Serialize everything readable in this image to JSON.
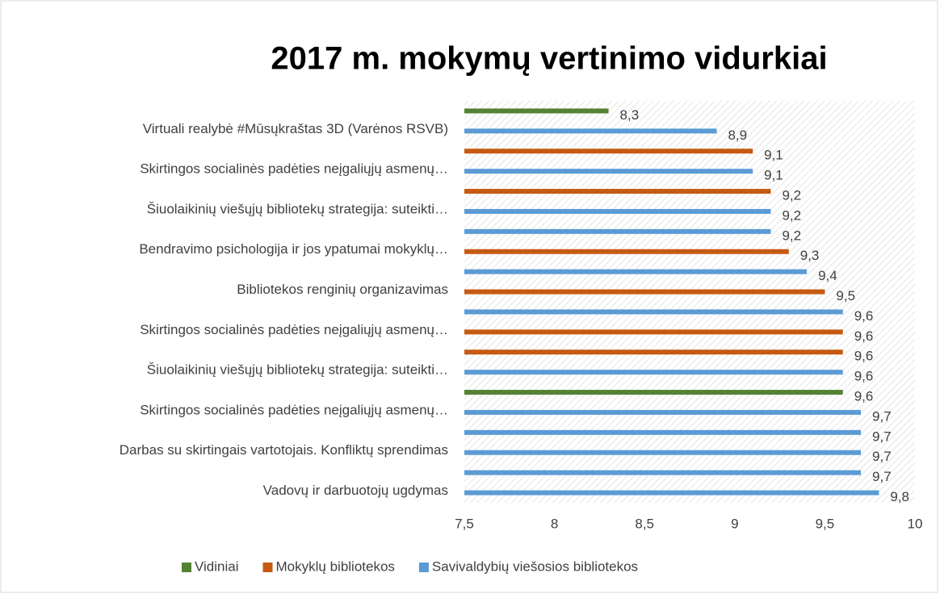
{
  "chart_data": {
    "type": "bar",
    "orientation": "horizontal",
    "title": "2017 m. mokymų vertinimo vidurkiai",
    "categories": [
      null,
      "Virtuali realybė #Mūsųkraštas 3D (Varėnos RSVB)",
      null,
      "Skirtingos socialinės padėties neįgaliųjų asmenų…",
      null,
      "Šiuolaikinių viešųjų bibliotekų strategija: suteikti…",
      null,
      "Bendravimo psichologija ir jos ypatumai mokyklų…",
      null,
      "Bibliotekos renginių organizavimas",
      null,
      "Skirtingos socialinės padėties neįgaliųjų asmenų…",
      null,
      "Šiuolaikinių viešųjų bibliotekų strategija: suteikti…",
      null,
      "Skirtingos socialinės padėties neįgaliųjų asmenų…",
      null,
      "Darbas su skirtingais vartotojais. Konfliktų sprendimas",
      null,
      "Vadovų ir darbuotojų ugdymas"
    ],
    "series": [
      {
        "name": "Vidiniai",
        "color": "#548235",
        "values": [
          8.3,
          null,
          null,
          null,
          null,
          null,
          null,
          null,
          null,
          null,
          null,
          null,
          null,
          null,
          9.6,
          null,
          null,
          null,
          null,
          null
        ],
        "value_labels": [
          "8,3",
          null,
          null,
          null,
          null,
          null,
          null,
          null,
          null,
          null,
          null,
          null,
          null,
          null,
          "9,6",
          null,
          null,
          null,
          null,
          null
        ]
      },
      {
        "name": "Mokyklų bibliotekos",
        "color": "#c55a11",
        "values": [
          null,
          null,
          9.1,
          null,
          9.2,
          null,
          null,
          9.3,
          null,
          9.5,
          null,
          9.6,
          9.6,
          null,
          null,
          null,
          null,
          null,
          null,
          null
        ],
        "value_labels": [
          null,
          null,
          "9,1",
          null,
          "9,2",
          null,
          null,
          "9,3",
          null,
          "9,5",
          null,
          "9,6",
          "9,6",
          null,
          null,
          null,
          null,
          null,
          null,
          null
        ]
      },
      {
        "name": "Savivaldybių viešosios bibliotekos",
        "color": "#5b9bd5",
        "values": [
          null,
          8.9,
          null,
          9.1,
          null,
          9.2,
          9.2,
          null,
          9.4,
          null,
          9.6,
          null,
          null,
          9.6,
          null,
          9.7,
          9.7,
          9.7,
          9.7,
          9.8
        ],
        "value_labels": [
          null,
          "8,9",
          null,
          "9,1",
          null,
          "9,2",
          "9,2",
          null,
          "9,4",
          null,
          "9,6",
          null,
          null,
          "9,6",
          null,
          "9,7",
          "9,7",
          "9,7",
          "9,7",
          "9,8"
        ]
      }
    ],
    "xlim": [
      7.5,
      10
    ],
    "xticks": [
      {
        "value": 7.5,
        "label": "7,5"
      },
      8,
      {
        "value": 8.5,
        "label": "8,5"
      },
      9,
      {
        "value": 9.5,
        "label": "9,5"
      },
      10
    ],
    "legend": "bottom"
  }
}
